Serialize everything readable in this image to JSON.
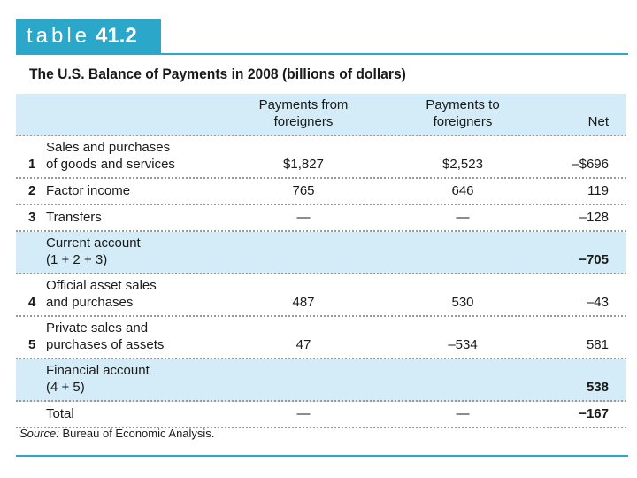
{
  "header": {
    "label": "table",
    "number": "41.2"
  },
  "title": "The U.S. Balance of Payments in 2008 (billions of dollars)",
  "table": {
    "columns": [
      [
        "Payments from",
        "foreigners"
      ],
      [
        "Payments to",
        "foreigners"
      ],
      [
        "Net"
      ]
    ],
    "rows": [
      {
        "num": "1",
        "label": [
          "Sales and purchases",
          "of goods and services"
        ],
        "from": "$1,827",
        "to": "$2,523",
        "net": "–$696"
      },
      {
        "num": "2",
        "label": [
          "Factor income"
        ],
        "from": "765",
        "to": "646",
        "net": "119"
      },
      {
        "num": "3",
        "label": [
          "Transfers"
        ],
        "from": "—",
        "to": "—",
        "net": "–128"
      },
      {
        "label": [
          "Current account",
          "(1 + 2 + 3)"
        ],
        "net": "−705",
        "highlight": true,
        "bold": true
      },
      {
        "num": "4",
        "label": [
          "Official asset sales",
          "and purchases"
        ],
        "from": "487",
        "to": "530",
        "net": "–43"
      },
      {
        "num": "5",
        "label": [
          "Private sales and",
          "purchases of assets"
        ],
        "from": "47",
        "to": "–534",
        "net": "581"
      },
      {
        "label": [
          "Financial account",
          "(4 + 5)"
        ],
        "net": "538",
        "highlight": true,
        "bold": true
      },
      {
        "label": [
          "Total"
        ],
        "from": "—",
        "to": "—",
        "net": "−167",
        "bold": true
      }
    ]
  },
  "source": {
    "label": "Source:",
    "text": "Bureau of Economic Analysis."
  }
}
